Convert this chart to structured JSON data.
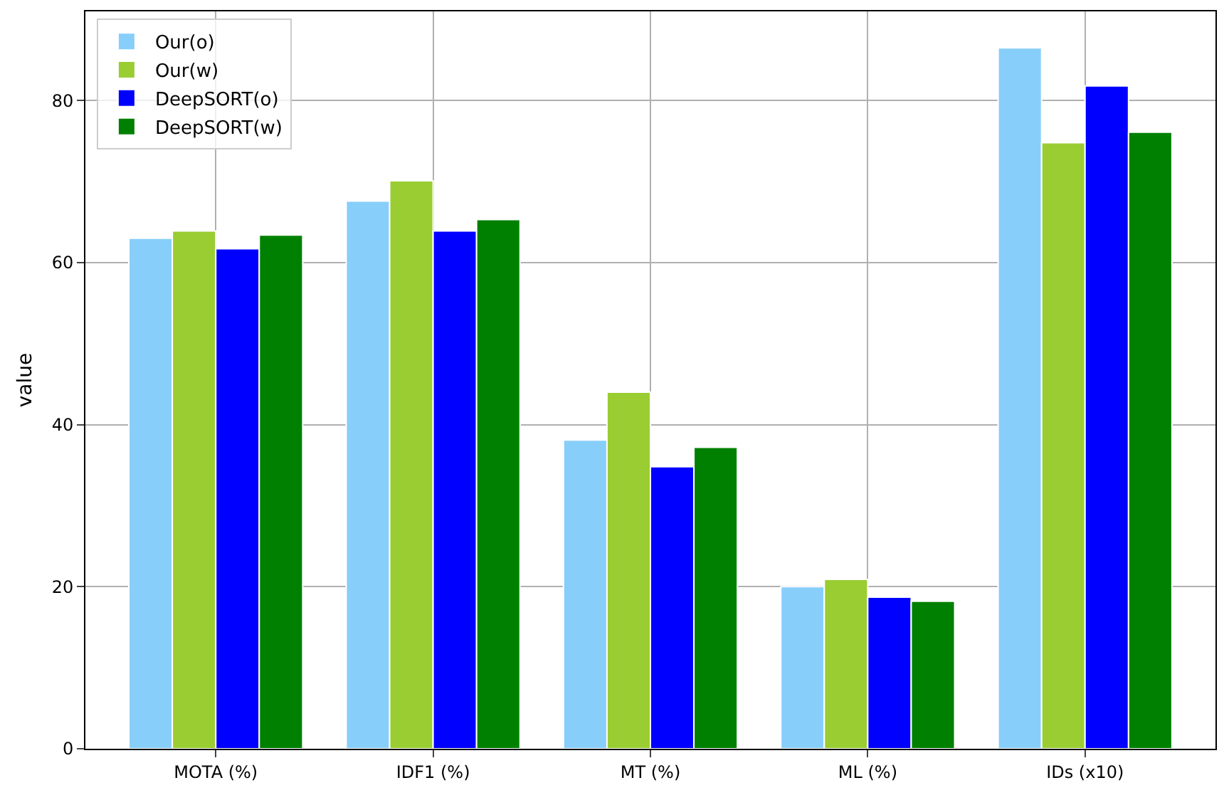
{
  "chart_data": {
    "type": "bar",
    "ylabel": "value",
    "categories": [
      "MOTA (%)",
      "IDF1 (%)",
      "MT (%)",
      "ML (%)",
      "IDs (x10)"
    ],
    "series": [
      {
        "name": "Our(o)",
        "color": "#87cefa",
        "values": [
          63.0,
          67.6,
          38.1,
          20.0,
          86.5
        ]
      },
      {
        "name": "Our(w)",
        "color": "#9acd32",
        "values": [
          63.9,
          70.1,
          44.0,
          20.9,
          74.8
        ]
      },
      {
        "name": "DeepSORT(o)",
        "color": "#0000ff",
        "values": [
          61.7,
          63.9,
          34.8,
          18.7,
          81.8
        ]
      },
      {
        "name": "DeepSORT(w)",
        "color": "#008000",
        "values": [
          63.4,
          65.3,
          37.2,
          18.2,
          76.1
        ]
      }
    ],
    "ylim": [
      0,
      91
    ],
    "yticks": [
      0,
      20,
      40,
      60,
      80
    ],
    "grid": true,
    "legend": "top left"
  }
}
